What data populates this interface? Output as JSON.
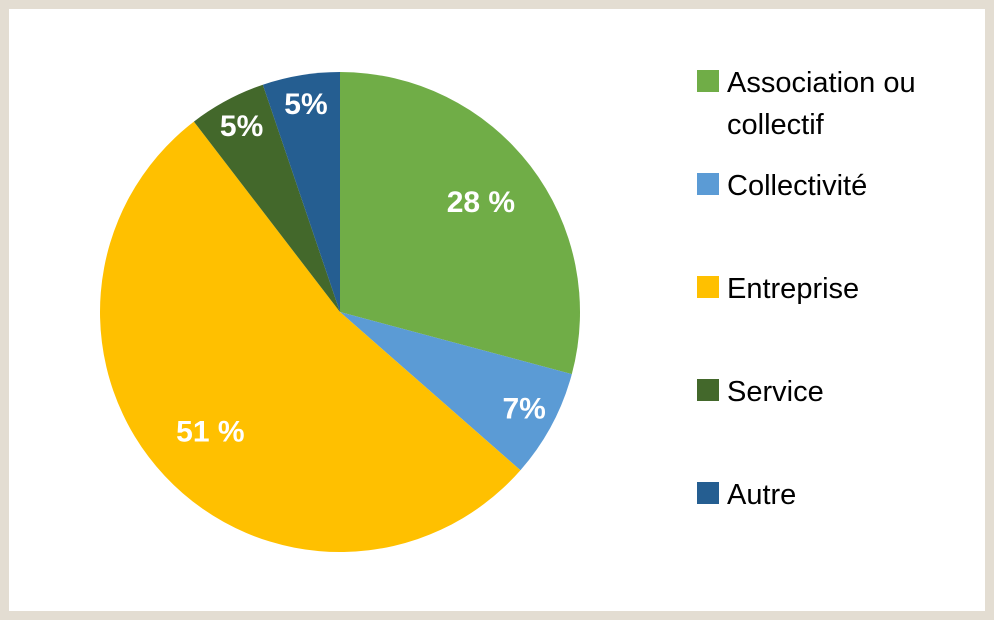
{
  "chart_data": {
    "type": "pie",
    "categories": [
      "Association ou collectif",
      "Collectivité",
      "Entreprise",
      "Service",
      "Autre"
    ],
    "values": [
      28,
      7,
      51,
      5,
      5
    ],
    "value_labels": [
      "28 %",
      "7%",
      "51 %",
      "5%",
      "5%"
    ],
    "colors": [
      "#70ad47",
      "#5b9bd5",
      "#ffc000",
      "#43682b",
      "#255e91"
    ],
    "legend": "right"
  }
}
